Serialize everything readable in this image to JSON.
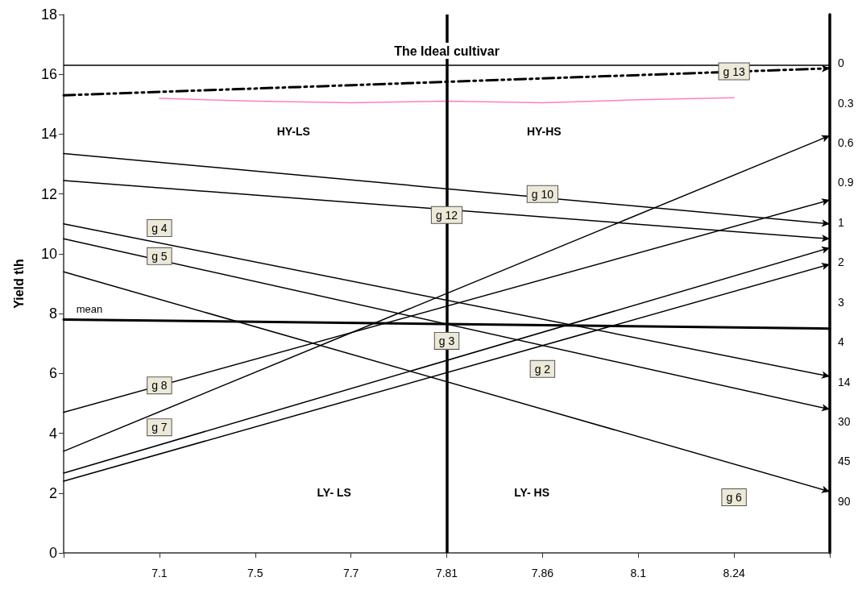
{
  "chart_data": {
    "type": "line",
    "ylabel": "Yield t\\h",
    "categories": [
      null,
      "7.1",
      "7.5",
      "7.7",
      "7.81",
      "7.86",
      "8.1",
      "8.24",
      null
    ],
    "ylim": [
      0,
      18
    ],
    "yticks": [
      0,
      2,
      4,
      6,
      8,
      10,
      12,
      14,
      16,
      18
    ],
    "series": [
      {
        "color": "#000000",
        "values": [
          15.3,
          null,
          null,
          null,
          null,
          null,
          null,
          null,
          16.2
        ],
        "line_style": "dashed",
        "marker": "diamond"
      },
      {
        "color": "#ff80c0",
        "values": [
          null,
          15.2,
          15.1,
          15.05,
          15.1,
          15.05,
          15.15,
          15.22,
          null
        ]
      },
      {
        "color": "#000000",
        "values": [
          13.35,
          null,
          null,
          null,
          null,
          null,
          null,
          null,
          11.0
        ],
        "marker": "diamond"
      },
      {
        "color": "#000000",
        "values": [
          12.45,
          null,
          null,
          null,
          null,
          null,
          null,
          null,
          10.5
        ],
        "marker": "diamond"
      },
      {
        "color": "#000000",
        "values": [
          11.0,
          null,
          null,
          null,
          null,
          null,
          null,
          null,
          5.9
        ],
        "marker": "diamond"
      },
      {
        "color": "#000000",
        "values": [
          10.5,
          null,
          null,
          null,
          null,
          null,
          null,
          null,
          4.8
        ],
        "marker": "diamond"
      },
      {
        "color": "#000000",
        "values": [
          9.4,
          null,
          null,
          null,
          null,
          null,
          null,
          null,
          2.05
        ],
        "marker": "diamond"
      },
      {
        "color": "#000000",
        "values": [
          4.7,
          null,
          null,
          null,
          null,
          null,
          null,
          null,
          11.8
        ],
        "marker": "diamond"
      },
      {
        "color": "#000000",
        "values": [
          3.4,
          null,
          null,
          null,
          null,
          null,
          null,
          null,
          13.95
        ],
        "marker": "diamond"
      },
      {
        "color": "#000000",
        "values": [
          2.67,
          null,
          null,
          null,
          null,
          null,
          null,
          null,
          10.2
        ],
        "marker": "diamond"
      },
      {
        "color": "#000000",
        "values": [
          2.4,
          null,
          null,
          null,
          null,
          null,
          null,
          null,
          9.65
        ],
        "marker": "diamond"
      },
      {
        "name": "mean",
        "color": "#000000",
        "values": [
          7.8,
          null,
          null,
          null,
          null,
          null,
          null,
          null,
          7.5
        ]
      }
    ],
    "ref_lines": [
      {
        "axis": "y",
        "value": 16.3,
        "label": "The Ideal cultivar",
        "color": "#000000"
      },
      {
        "axis": "x",
        "value": "7.81",
        "label": null,
        "color": "#000000"
      }
    ],
    "annotations": [
      "HY-LS",
      "HY-HS",
      "LY- LS",
      "LY- HS",
      {
        "text": "g 13",
        "x": "8.24",
        "y": 16.1
      },
      {
        "text": "g 10",
        "x": "7.86",
        "y": 12.0
      },
      {
        "text": "g 12",
        "x": "7.81",
        "y": 11.3
      },
      {
        "text": "g 4",
        "x": "7.1",
        "y": 10.86
      },
      {
        "text": "g 5",
        "x": "7.1",
        "y": 9.92
      },
      {
        "text": "g 6",
        "x": "8.24",
        "y": 1.86
      },
      {
        "text": "g 8",
        "x": "7.1",
        "y": 5.6
      },
      {
        "text": "g 7",
        "x": "7.1",
        "y": 4.2
      },
      {
        "text": "g 3",
        "x": "7.81",
        "y": 7.09
      },
      {
        "text": "g 2",
        "x": "7.86",
        "y": 6.15
      },
      "0",
      "0.3",
      "0.6",
      "0.9",
      "1",
      "2",
      "3",
      "4",
      "14",
      "30",
      "45",
      "90"
    ]
  }
}
